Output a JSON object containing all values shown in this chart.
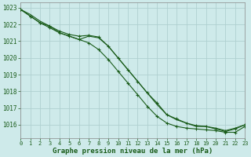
{
  "title": "Graphe pression niveau de la mer (hPa)",
  "xlim": [
    0,
    23
  ],
  "xticks": [
    0,
    1,
    2,
    3,
    4,
    5,
    6,
    7,
    8,
    9,
    10,
    11,
    12,
    13,
    14,
    15,
    16,
    17,
    18,
    19,
    20,
    21,
    22,
    23
  ],
  "ylim": [
    1015.2,
    1023.3
  ],
  "yticks": [
    1016,
    1017,
    1018,
    1019,
    1020,
    1021,
    1022,
    1023
  ],
  "bg_color": "#ceeaea",
  "grid_color": "#b0d0d0",
  "line_color": "#1a5c1a",
  "marker_color": "#1a5c1a",
  "series1_y": [
    1022.9,
    1022.6,
    1022.2,
    1021.9,
    1021.5,
    1021.3,
    1021.1,
    1021.3,
    1021.2,
    1020.7,
    1020.0,
    1019.3,
    1018.6,
    1017.9,
    1017.2,
    1016.6,
    1016.3,
    1016.1,
    1015.9,
    1015.9,
    1015.8,
    1015.65,
    1015.8,
    1016.0
  ],
  "series2_y": [
    1022.9,
    1022.5,
    1022.1,
    1021.9,
    1021.6,
    1021.4,
    1021.3,
    1021.35,
    1021.25,
    1020.7,
    1020.0,
    1019.3,
    1018.6,
    1017.9,
    1017.3,
    1016.6,
    1016.35,
    1016.1,
    1015.95,
    1015.9,
    1015.75,
    1015.6,
    1015.75,
    1016.0
  ],
  "series3_y": [
    1022.9,
    1022.5,
    1022.1,
    1021.8,
    1021.5,
    1021.3,
    1021.1,
    1020.9,
    1020.5,
    1019.9,
    1019.2,
    1018.5,
    1017.8,
    1017.1,
    1016.5,
    1016.1,
    1015.9,
    1015.8,
    1015.75,
    1015.7,
    1015.65,
    1015.55,
    1015.55,
    1015.9
  ],
  "tick_color": "#1a5c1a",
  "tick_fontsize": 5,
  "ylabel_fontsize": 5.5,
  "xlabel_fontsize": 6.5
}
